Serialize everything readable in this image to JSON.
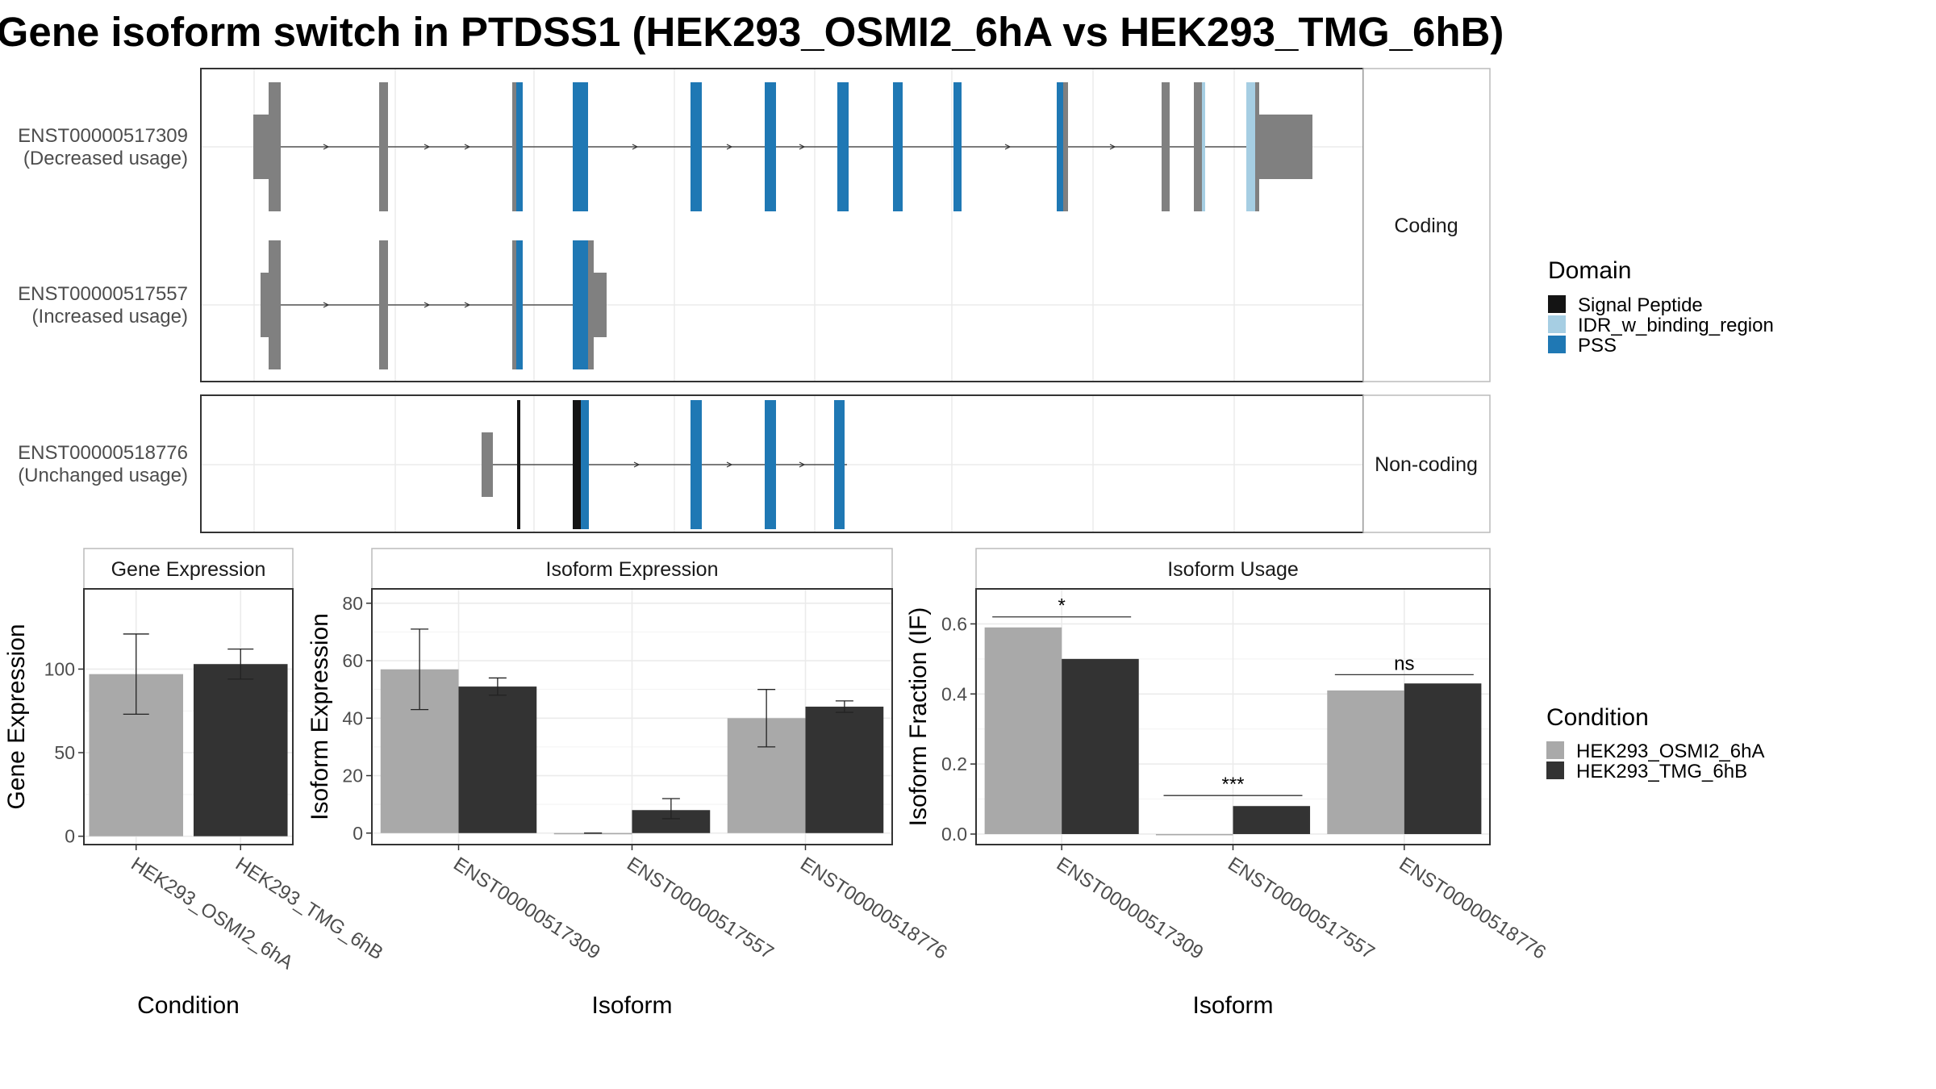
{
  "title": "Gene isoform switch in PTDSS1 (HEK293_OSMI2_6hA vs HEK293_TMG_6hB)",
  "colors": {
    "signal_peptide": "#141414",
    "idr": "#a6cee3",
    "pss": "#1f78b4",
    "exon_gray": "#808080",
    "cond_a": "#a9a9a9",
    "cond_b": "#333333"
  },
  "facets": {
    "coding": "Coding",
    "noncoding": "Non-coding"
  },
  "transcripts": [
    {
      "id": "ENST00000517309",
      "usage": "(Decreased usage)"
    },
    {
      "id": "ENST00000517557",
      "usage": "(Increased usage)"
    },
    {
      "id": "ENST00000518776",
      "usage": "(Unchanged usage)"
    }
  ],
  "domain_legend": {
    "title": "Domain",
    "items": [
      {
        "label": "Signal Peptide",
        "color": "#141414"
      },
      {
        "label": "IDR_w_binding_region",
        "color": "#a6cee3"
      },
      {
        "label": "PSS",
        "color": "#1f78b4"
      }
    ]
  },
  "condition_legend": {
    "title": "Condition",
    "items": [
      {
        "label": "HEK293_OSMI2_6hA",
        "color": "#a9a9a9"
      },
      {
        "label": "HEK293_TMG_6hB",
        "color": "#333333"
      }
    ]
  },
  "chart_data": [
    {
      "type": "bar",
      "title": "Gene Expression",
      "xlabel": "Condition",
      "ylabel": "Gene Expression",
      "categories": [
        "HEK293_OSMI2_6hA",
        "HEK293_TMG_6hB"
      ],
      "values": [
        97,
        103
      ],
      "error_low": [
        73,
        94
      ],
      "error_high": [
        121,
        112
      ],
      "ylim": [
        -5,
        148
      ],
      "yticks": [
        0,
        50,
        100
      ]
    },
    {
      "type": "bar",
      "title": "Isoform Expression",
      "xlabel": "Isoform",
      "ylabel": "Isoform Expression",
      "categories": [
        "ENST00000517309",
        "ENST00000517557",
        "ENST00000518776"
      ],
      "series": [
        {
          "name": "HEK293_OSMI2_6hA",
          "values": [
            57,
            0,
            40
          ],
          "error_low": [
            43,
            0,
            30
          ],
          "error_high": [
            71,
            0,
            50
          ]
        },
        {
          "name": "HEK293_TMG_6hB",
          "values": [
            51,
            8,
            44
          ],
          "error_low": [
            48,
            5,
            42
          ],
          "error_high": [
            54,
            12,
            46
          ]
        }
      ],
      "ylim": [
        -4,
        85
      ],
      "yticks": [
        0,
        20,
        40,
        60,
        80
      ]
    },
    {
      "type": "bar",
      "title": "Isoform Usage",
      "xlabel": "Isoform",
      "ylabel": "Isoform Fraction (IF)",
      "categories": [
        "ENST00000517309",
        "ENST00000517557",
        "ENST00000518776"
      ],
      "series": [
        {
          "name": "HEK293_OSMI2_6hA",
          "values": [
            0.59,
            0.0,
            0.41
          ]
        },
        {
          "name": "HEK293_TMG_6hB",
          "values": [
            0.5,
            0.08,
            0.43
          ]
        }
      ],
      "significance": [
        "*",
        "***",
        "ns"
      ],
      "sig_y": [
        0.62,
        0.11,
        0.455
      ],
      "ylim": [
        -0.03,
        0.7
      ],
      "yticks": [
        0.0,
        0.2,
        0.4,
        0.6
      ],
      "ytick_labels": [
        "0.0",
        "0.2",
        "0.4",
        "0.6"
      ]
    }
  ]
}
